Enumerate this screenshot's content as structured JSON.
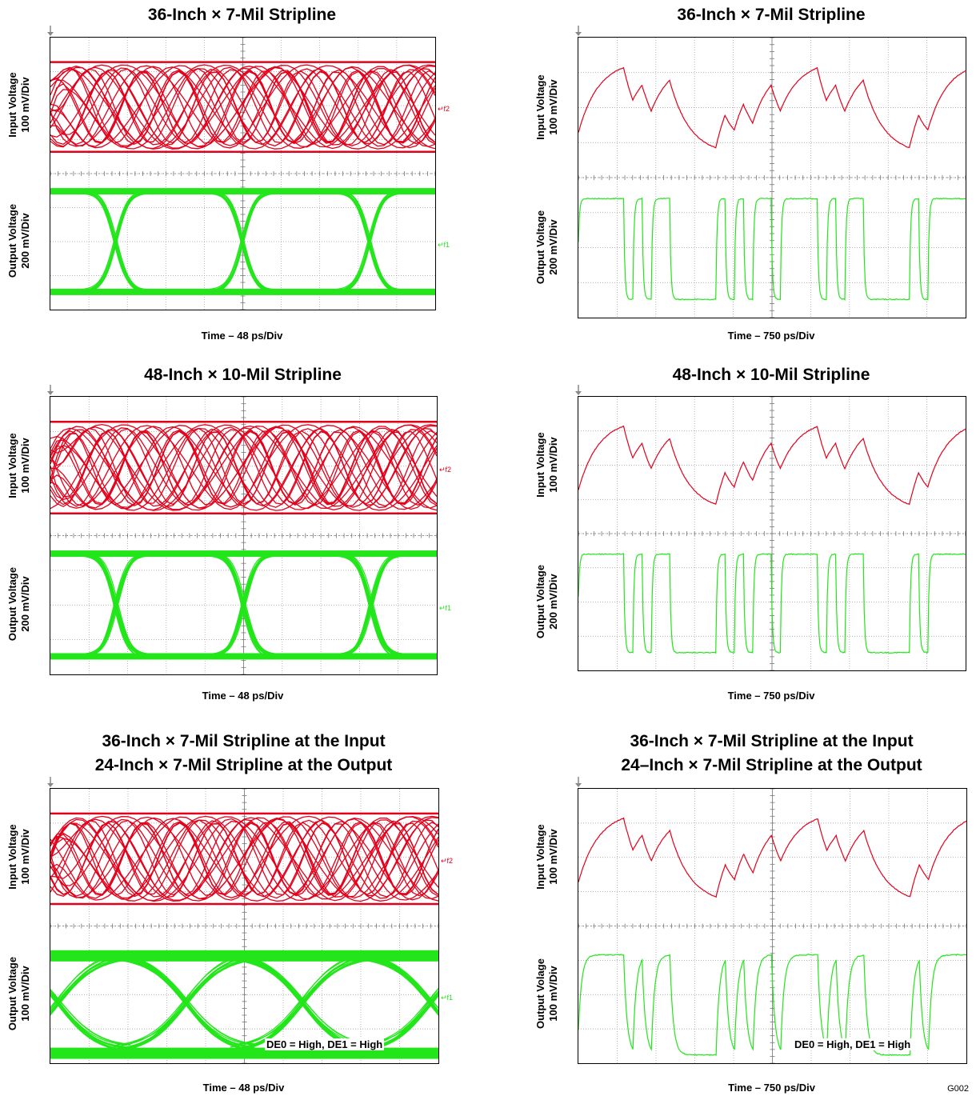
{
  "figure_id": "G002",
  "colors": {
    "input": "#e3001b",
    "output": "#22e61a",
    "grid": "#9a9a9a"
  },
  "panels": [
    {
      "title_lines": [
        "36-Inch × 7-Mil Stripline"
      ],
      "type": "eye",
      "y_top": "Input Voltage",
      "y_top_unit": "100 mV/Div",
      "y_bot": "Output Voltage",
      "y_bot_unit": "200 mV/Div",
      "x_label": "Time – 48 ps/Div",
      "annotation": "",
      "marker_top": "f2",
      "marker_bot": "f1"
    },
    {
      "title_lines": [
        "36-Inch × 7-Mil Stripline"
      ],
      "type": "waveform",
      "y_top": "Input Voltage",
      "y_top_unit": "100 mV/Div",
      "y_bot": "Output Voltage",
      "y_bot_unit": "200 mV/Div",
      "x_label": "Time – 750 ps/Div",
      "annotation": "",
      "marker_top": "",
      "marker_bot": ""
    },
    {
      "title_lines": [
        "48-Inch × 10-Mil Stripline"
      ],
      "type": "eye",
      "y_top": "Input Voltage",
      "y_top_unit": "100 mV/Div",
      "y_bot": "Output Voltage",
      "y_bot_unit": "200 mV/Div",
      "x_label": "Time – 48 ps/Div",
      "annotation": "",
      "marker_top": "f2",
      "marker_bot": "f1"
    },
    {
      "title_lines": [
        "48-Inch × 10-Mil Stripline"
      ],
      "type": "waveform",
      "y_top": "Input Voltage",
      "y_top_unit": "100 mV/Div",
      "y_bot": "Output Voltage",
      "y_bot_unit": "200 mV/Div",
      "x_label": "Time – 750 ps/Div",
      "annotation": "",
      "marker_top": "",
      "marker_bot": ""
    },
    {
      "title_lines": [
        "36-Inch × 7-Mil Stripline at the Input",
        "24-Inch × 7-Mil Stripline at the Output"
      ],
      "type": "eye",
      "y_top": "Input Voltage",
      "y_top_unit": "100 mV/Div",
      "y_bot": "Output Voltage",
      "y_bot_unit": "100 mV/Div",
      "x_label": "Time – 48 ps/Div",
      "annotation": "DE0 = High, DE1 = High",
      "marker_top": "f2",
      "marker_bot": "f1"
    },
    {
      "title_lines": [
        "36-Inch × 7-Mil Stripline at the Input",
        "24–Inch × 7-Mil Stripline at the Output"
      ],
      "type": "waveform",
      "y_top": "Input Voltage",
      "y_top_unit": "100 mV/Div",
      "y_bot": "Output Volage",
      "y_bot_unit": "100 mV/Div",
      "x_label": "Time – 750 ps/Div",
      "annotation": "DE0 = High, DE1 = High",
      "marker_top": "",
      "marker_bot": ""
    }
  ],
  "chart_data": [
    {
      "type": "line",
      "title": "36-Inch × 7-Mil Stripline",
      "plot": "eye diagram",
      "xlabel": "Time – 48 ps/Div",
      "grid": true,
      "divisions": {
        "x": 10,
        "y": 8
      },
      "series": [
        {
          "name": "Input Voltage",
          "scale": "100 mV/Div",
          "color": "red"
        },
        {
          "name": "Output Voltage",
          "scale": "200 mV/Div",
          "color": "green"
        }
      ]
    },
    {
      "type": "line",
      "title": "36-Inch × 7-Mil Stripline",
      "plot": "time-domain waveform",
      "xlabel": "Time – 750 ps/Div",
      "grid": true,
      "divisions": {
        "x": 10,
        "y": 8
      },
      "series": [
        {
          "name": "Input Voltage",
          "scale": "100 mV/Div",
          "color": "red"
        },
        {
          "name": "Output Voltage",
          "scale": "200 mV/Div",
          "color": "green"
        }
      ]
    },
    {
      "type": "line",
      "title": "48-Inch × 10-Mil Stripline",
      "plot": "eye diagram",
      "xlabel": "Time – 48 ps/Div",
      "grid": true,
      "divisions": {
        "x": 10,
        "y": 8
      },
      "series": [
        {
          "name": "Input Voltage",
          "scale": "100 mV/Div",
          "color": "red"
        },
        {
          "name": "Output Voltage",
          "scale": "200 mV/Div",
          "color": "green"
        }
      ]
    },
    {
      "type": "line",
      "title": "48-Inch × 10-Mil Stripline",
      "plot": "time-domain waveform",
      "xlabel": "Time – 750 ps/Div",
      "grid": true,
      "divisions": {
        "x": 10,
        "y": 8
      },
      "series": [
        {
          "name": "Input Voltage",
          "scale": "100 mV/Div",
          "color": "red"
        },
        {
          "name": "Output Voltage",
          "scale": "200 mV/Div",
          "color": "green"
        }
      ]
    },
    {
      "type": "line",
      "title": "36-Inch × 7-Mil Stripline at the Input / 24-Inch × 7-Mil Stripline at the Output",
      "plot": "eye diagram",
      "xlabel": "Time – 48 ps/Div",
      "grid": true,
      "divisions": {
        "x": 10,
        "y": 8
      },
      "annotation": "DE0 = High, DE1 = High",
      "series": [
        {
          "name": "Input Voltage",
          "scale": "100 mV/Div",
          "color": "red"
        },
        {
          "name": "Output Voltage",
          "scale": "100 mV/Div",
          "color": "green"
        }
      ]
    },
    {
      "type": "line",
      "title": "36-Inch × 7-Mil Stripline at the Input / 24–Inch × 7-Mil Stripline at the Output",
      "plot": "time-domain waveform",
      "xlabel": "Time – 750 ps/Div",
      "grid": true,
      "divisions": {
        "x": 10,
        "y": 8
      },
      "annotation": "DE0 = High, DE1 = High",
      "series": [
        {
          "name": "Input Voltage",
          "scale": "100 mV/Div",
          "color": "red"
        },
        {
          "name": "Output Volage",
          "scale": "100 mV/Div",
          "color": "green"
        }
      ]
    }
  ]
}
